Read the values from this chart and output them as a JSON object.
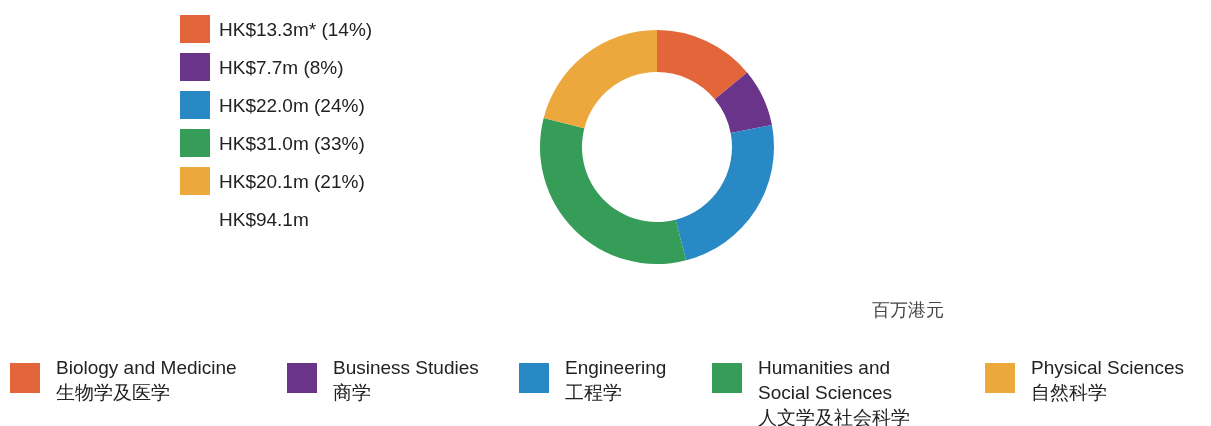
{
  "chart_data": {
    "type": "donut",
    "categories": [
      "Biology and Medicine\n生物学及医学",
      "Business Studies\n商学",
      "Engineering\n工程学",
      "Humanities and\nSocial Sciences\n人文学及社会科学",
      "Physical Sciences\n自然科学"
    ],
    "values": [
      14,
      8,
      24,
      33,
      21
    ],
    "colors": [
      "#e2663a",
      "#693489",
      "#2889c4",
      "#359d57",
      "#eca83c"
    ],
    "annotations": [
      "HK$13.3m* (14%)",
      "HK$7.7m (8%)",
      "HK$22.0m (24%)",
      "HK$31.0m (33%)",
      "HK$20.1m (21%)",
      "HK$94.1m",
      "百万港元"
    ],
    "legend": "bottom"
  }
}
